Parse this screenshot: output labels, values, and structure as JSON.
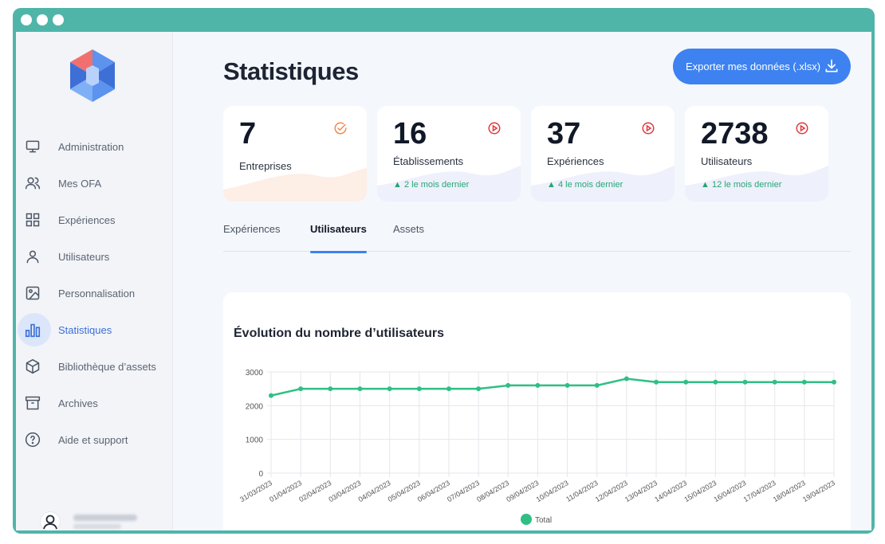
{
  "sidebar": {
    "items": [
      {
        "label": "Administration",
        "icon": "monitor-icon",
        "active": false
      },
      {
        "label": "Mes OFA",
        "icon": "users-icon",
        "active": false
      },
      {
        "label": "Expériences",
        "icon": "grid-icon",
        "active": false
      },
      {
        "label": "Utilisateurs",
        "icon": "user-icon",
        "active": false
      },
      {
        "label": "Personnalisation",
        "icon": "image-icon",
        "active": false
      },
      {
        "label": "Statistiques",
        "icon": "bar-chart-icon",
        "active": true
      },
      {
        "label": "Bibliothèque d’assets",
        "icon": "box-icon",
        "active": false
      },
      {
        "label": "Archives",
        "icon": "archive-icon",
        "active": false
      },
      {
        "label": "Aide et support",
        "icon": "help-circle-icon",
        "active": false
      }
    ]
  },
  "header": {
    "title": "Statistiques",
    "export_label": "Exporter mes données (.xlsx)"
  },
  "stats": [
    {
      "value": "7",
      "label": "Entreprises",
      "delta": "",
      "icon": "check-circle-icon"
    },
    {
      "value": "16",
      "label": "Établissements",
      "delta": "2 le mois dernier",
      "icon": "play-circle-icon"
    },
    {
      "value": "37",
      "label": "Expériences",
      "delta": "4 le mois dernier",
      "icon": "play-circle-icon"
    },
    {
      "value": "2738",
      "label": "Utilisateurs",
      "delta": "12 le mois dernier",
      "icon": "play-circle-icon"
    }
  ],
  "tabs": [
    {
      "label": "Expériences",
      "active": false
    },
    {
      "label": "Utilisateurs",
      "active": true
    },
    {
      "label": "Assets",
      "active": false
    }
  ],
  "chart_title": "Évolution du nombre d’utilisateurs",
  "colors": {
    "accent": "#3d82f0",
    "line": "#2fbf85",
    "frame": "#4fb5a9",
    "delta": "#26a576",
    "icon_orange": "#f08a4b",
    "icon_red": "#e0393e"
  },
  "chart_data": {
    "type": "line",
    "title": "Évolution du nombre d’utilisateurs",
    "x": [
      "31/03/2023",
      "01/04/2023",
      "02/04/2023",
      "03/04/2023",
      "04/04/2023",
      "05/04/2023",
      "06/04/2023",
      "07/04/2023",
      "08/04/2023",
      "09/04/2023",
      "10/04/2023",
      "11/04/2023",
      "12/04/2023",
      "13/04/2023",
      "14/04/2023",
      "15/04/2023",
      "16/04/2023",
      "17/04/2023",
      "18/04/2023",
      "19/04/2023"
    ],
    "series": [
      {
        "name": "Total",
        "values": [
          2300,
          2500,
          2500,
          2500,
          2500,
          2500,
          2500,
          2500,
          2600,
          2600,
          2600,
          2600,
          2800,
          2700,
          2700,
          2700,
          2700,
          2700,
          2700,
          2700
        ]
      }
    ],
    "yticks": [
      0,
      1000,
      2000,
      3000
    ],
    "ylim": [
      0,
      3000
    ],
    "grid": true,
    "legend": "bottom"
  }
}
